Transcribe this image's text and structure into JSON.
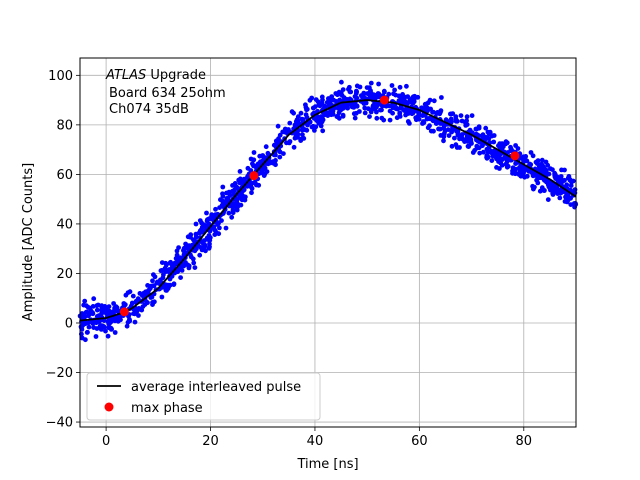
{
  "chart_data": {
    "type": "scatter",
    "xlabel": "Time [ns]",
    "ylabel": "Amplitude [ADC Counts]",
    "xlim": [
      -5,
      90
    ],
    "ylim": [
      -42,
      107
    ],
    "xticks": [
      "0",
      "20",
      "40",
      "60",
      "80"
    ],
    "yticks": [
      "−40",
      "−20",
      "0",
      "20",
      "40",
      "60",
      "80",
      "100"
    ],
    "xtick_values": [
      0,
      20,
      40,
      60,
      80
    ],
    "ytick_values": [
      -40,
      -20,
      0,
      20,
      40,
      60,
      80,
      100
    ],
    "grid": true,
    "legend_position": "lower-left",
    "annotation": {
      "line1_italic": "ATLAS",
      "line1_rest": " Upgrade",
      "line2": "Board 634 25ohm",
      "line3": "Ch074 35dB"
    },
    "series": [
      {
        "name": "average interleaved pulse",
        "kind": "line",
        "color": "#000000",
        "x": [
          -5,
          0,
          3,
          5,
          10,
          15,
          20,
          25,
          30,
          35,
          40,
          45,
          50,
          55,
          60,
          65,
          70,
          75,
          80,
          85,
          90
        ],
        "y": [
          1,
          2,
          4,
          6,
          14,
          26,
          39,
          52,
          64,
          76,
          84,
          89,
          90,
          89,
          86,
          81,
          76,
          70,
          64,
          58,
          51
        ]
      },
      {
        "name": "max phase",
        "kind": "markers",
        "color": "#ff0000",
        "x": [
          3.5,
          28.3,
          53.3,
          78.3
        ],
        "y": [
          4.5,
          59.5,
          90,
          67.5
        ]
      },
      {
        "name": "samples",
        "kind": "scatter",
        "color": "#0000ff",
        "note": "dense cloud of sample points scattered around the average pulse (spread approx ±6 ADC counts)"
      }
    ]
  }
}
